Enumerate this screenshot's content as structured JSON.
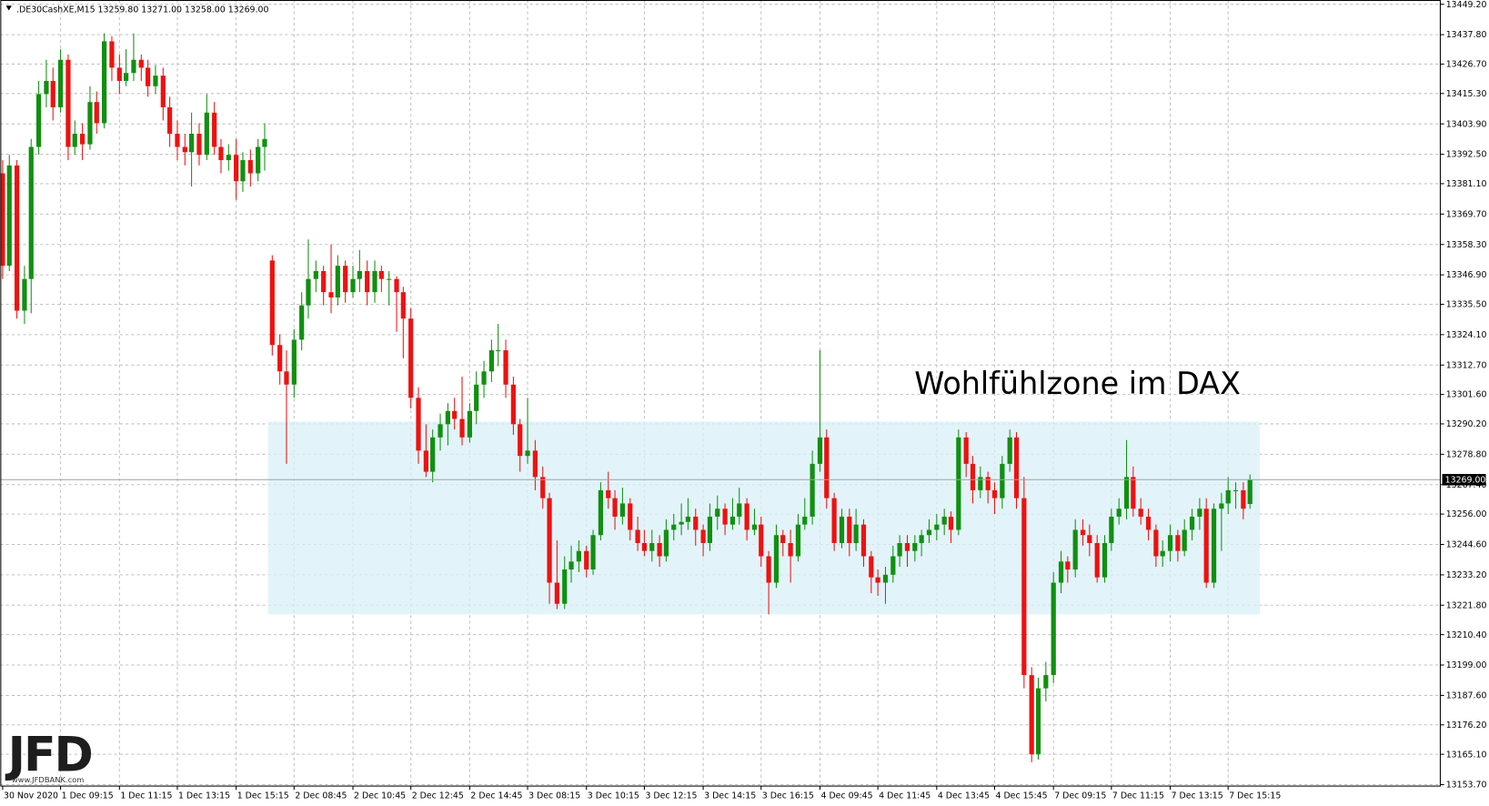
{
  "chart_data": {
    "type": "candlestick",
    "header": ".DE30CashXE,M15  13259.80 13271.00 13258.00 13269.00",
    "annotation": "Wohlfühlzone im DAX",
    "logo": "JFD",
    "logo_url": "www.JFDBANK.com",
    "up_color": "#109010",
    "down_color": "#ee1111",
    "zone_color": "#d8f0f8",
    "grid": true,
    "ylim": [
      13153.7,
      13449.2
    ],
    "yticks": [
      {
        "value": 13449.2,
        "label": "13449.20"
      },
      {
        "value": 13437.8,
        "label": "13437.80"
      },
      {
        "value": 13426.7,
        "label": "13426.70"
      },
      {
        "value": 13415.3,
        "label": "13415.30"
      },
      {
        "value": 13403.9,
        "label": "13403.90"
      },
      {
        "value": 13392.5,
        "label": "13392.50"
      },
      {
        "value": 13381.1,
        "label": "13381.10"
      },
      {
        "value": 13369.7,
        "label": "13369.70"
      },
      {
        "value": 13358.3,
        "label": "13358.30"
      },
      {
        "value": 13346.9,
        "label": "13346.90"
      },
      {
        "value": 13335.5,
        "label": "13335.50"
      },
      {
        "value": 13324.1,
        "label": "13324.10"
      },
      {
        "value": 13312.7,
        "label": "13312.70"
      },
      {
        "value": 13301.6,
        "label": "13301.60"
      },
      {
        "value": 13290.2,
        "label": "13290.20"
      },
      {
        "value": 13278.8,
        "label": "13278.80"
      },
      {
        "value": 13267.4,
        "label": "13267.40"
      },
      {
        "value": 13256,
        "label": "13256.00"
      },
      {
        "value": 13244.6,
        "label": "13244.60"
      },
      {
        "value": 13233.2,
        "label": "13233.20"
      },
      {
        "value": 13221.8,
        "label": "13221.80"
      },
      {
        "value": 13210.4,
        "label": "13210.40"
      },
      {
        "value": 13199,
        "label": "13199.00"
      },
      {
        "value": 13187.6,
        "label": "13187.60"
      },
      {
        "value": 13176.2,
        "label": "13176.20"
      },
      {
        "value": 13165.1,
        "label": "13165.10"
      },
      {
        "value": 13153.7,
        "label": "13153.70"
      }
    ],
    "current_price": {
      "value": 13269,
      "label": "13269.00"
    },
    "zone": {
      "low": 13218,
      "high": 13291
    },
    "xtick_labels": [
      "30 Nov 2020",
      "1 Dec 09:15",
      "1 Dec 11:15",
      "1 Dec 13:15",
      "1 Dec 15:15",
      "2 Dec 08:45",
      "2 Dec 10:45",
      "2 Dec 12:45",
      "2 Dec 14:45",
      "3 Dec 08:15",
      "3 Dec 10:15",
      "3 Dec 12:15",
      "3 Dec 14:15",
      "3 Dec 16:15",
      "4 Dec 09:45",
      "4 Dec 11:45",
      "4 Dec 13:45",
      "4 Dec 15:45",
      "7 Dec 09:15",
      "7 Dec 11:15",
      "7 Dec 13:15",
      "7 Dec 15:15"
    ],
    "open": [
      13385,
      13350,
      13388,
      13333,
      13345,
      13395,
      13415,
      13420,
      13410,
      13428,
      13395,
      13400,
      13396,
      13412,
      13404,
      13435,
      13425,
      13420,
      13423,
      13428,
      13425,
      13418,
      13422,
      13410,
      13400,
      13395,
      13393,
      13400,
      13392,
      13408,
      13395,
      13390,
      13392,
      13382,
      13390,
      13385,
      13395,
      13352,
      13320,
      13310,
      13305,
      13322,
      13335,
      13345,
      13348,
      13340,
      13338,
      13350,
      13340,
      13345,
      13348,
      13340,
      13348,
      13345,
      13345,
      13340,
      13330,
      13300,
      13280,
      13272,
      13285,
      13290,
      13295,
      13292,
      13285,
      13295,
      13305,
      13310,
      13318,
      13318,
      13305,
      13290,
      13278,
      13280,
      13270,
      13262,
      13230,
      13222,
      13235,
      13238,
      13242,
      13235,
      13248,
      13265,
      13262,
      13255,
      13260,
      13250,
      13245,
      13242,
      13245,
      13240,
      13250,
      13252,
      13253,
      13255,
      13250,
      13245,
      13255,
      13258,
      13252,
      13255,
      13260,
      13250,
      13252,
      13240,
      13230,
      13248,
      13245,
      13240,
      13252,
      13255,
      13275,
      13285,
      13262,
      13245,
      13255,
      13245,
      13252,
      13240,
      13232,
      13230,
      13233,
      13240,
      13245,
      13242,
      13245,
      13248,
      13250,
      13252,
      13255,
      13250,
      13285,
      13275,
      13265,
      13270,
      13265,
      13262,
      13275,
      13285,
      13262,
      13195,
      13165,
      13190,
      13195,
      13230,
      13238,
      13235,
      13250,
      13248,
      13245,
      13232,
      13245,
      13255,
      13258,
      13270,
      13258,
      13255,
      13250,
      13240,
      13242,
      13248,
      13242,
      13250,
      13255,
      13258,
      13230,
      13258,
      13260,
      13265,
      13265,
      13259.8
    ],
    "high": [
      13390,
      13392,
      13390,
      13350,
      13398,
      13420,
      13428,
      13425,
      13432,
      13430,
      13405,
      13404,
      13418,
      13416,
      13438,
      13437,
      13430,
      13432,
      13438,
      13430,
      13428,
      13426,
      13425,
      13414,
      13405,
      13400,
      13408,
      13404,
      13415,
      13412,
      13398,
      13396,
      13398,
      13393,
      13394,
      13398,
      13404,
      13354,
      13324,
      13318,
      13326,
      13340,
      13360,
      13352,
      13350,
      13358,
      13354,
      13352,
      13350,
      13356,
      13352,
      13352,
      13350,
      13348,
      13346,
      13342,
      13334,
      13304,
      13290,
      13288,
      13294,
      13298,
      13300,
      13308,
      13298,
      13310,
      13314,
      13322,
      13328,
      13322,
      13308,
      13292,
      13300,
      13284,
      13274,
      13264,
      13246,
      13240,
      13244,
      13246,
      13244,
      13250,
      13268,
      13272,
      13265,
      13266,
      13262,
      13255,
      13250,
      13250,
      13248,
      13254,
      13256,
      13260,
      13262,
      13258,
      13252,
      13260,
      13263,
      13260,
      13262,
      13266,
      13262,
      13258,
      13255,
      13242,
      13252,
      13250,
      13250,
      13256,
      13262,
      13280,
      13318,
      13288,
      13264,
      13258,
      13258,
      13258,
      13254,
      13242,
      13235,
      13236,
      13244,
      13248,
      13248,
      13248,
      13250,
      13254,
      13256,
      13258,
      13257,
      13288,
      13287,
      13278,
      13274,
      13272,
      13268,
      13278,
      13288,
      13287,
      13270,
      13198,
      13194,
      13200,
      13234,
      13242,
      13240,
      13254,
      13254,
      13252,
      13248,
      13248,
      13258,
      13262,
      13284,
      13274,
      13262,
      13258,
      13252,
      13246,
      13252,
      13250,
      13254,
      13258,
      13262,
      13262,
      13260,
      13264,
      13270,
      13268,
      13268,
      13271
    ],
    "low": [
      13345,
      13348,
      13330,
      13328,
      13332,
      13392,
      13410,
      13405,
      13408,
      13390,
      13392,
      13390,
      13394,
      13400,
      13402,
      13420,
      13415,
      13418,
      13420,
      13420,
      13414,
      13415,
      13405,
      13395,
      13390,
      13388,
      13380,
      13388,
      13390,
      13392,
      13385,
      13386,
      13375,
      13378,
      13380,
      13382,
      13386,
      13316,
      13305,
      13275,
      13300,
      13318,
      13330,
      13340,
      13335,
      13332,
      13335,
      13336,
      13338,
      13340,
      13335,
      13336,
      13340,
      13335,
      13325,
      13315,
      13296,
      13275,
      13270,
      13268,
      13280,
      13282,
      13288,
      13282,
      13283,
      13290,
      13300,
      13306,
      13312,
      13300,
      13286,
      13272,
      13275,
      13265,
      13258,
      13222,
      13220,
      13220,
      13230,
      13234,
      13232,
      13233,
      13246,
      13258,
      13250,
      13252,
      13246,
      13242,
      13240,
      13238,
      13236,
      13238,
      13246,
      13248,
      13250,
      13244,
      13240,
      13242,
      13250,
      13248,
      13250,
      13252,
      13246,
      13248,
      13236,
      13218,
      13228,
      13240,
      13230,
      13238,
      13250,
      13252,
      13272,
      13258,
      13242,
      13243,
      13240,
      13242,
      13236,
      13226,
      13225,
      13222,
      13230,
      13236,
      13236,
      13238,
      13240,
      13245,
      13246,
      13248,
      13245,
      13248,
      13270,
      13260,
      13262,
      13260,
      13256,
      13258,
      13272,
      13258,
      13190,
      13162,
      13163,
      13185,
      13192,
      13226,
      13230,
      13232,
      13244,
      13240,
      13230,
      13230,
      13242,
      13252,
      13254,
      13255,
      13252,
      13246,
      13236,
      13236,
      13238,
      13238,
      13240,
      13246,
      13250,
      13228,
      13228,
      13242,
      13256,
      13258,
      13254,
      13258
    ],
    "close": [
      13350,
      13388,
      13333,
      13345,
      13395,
      13415,
      13420,
      13410,
      13428,
      13395,
      13400,
      13396,
      13412,
      13404,
      13435,
      13425,
      13420,
      13423,
      13428,
      13425,
      13418,
      13422,
      13410,
      13400,
      13395,
      13393,
      13400,
      13392,
      13408,
      13395,
      13390,
      13392,
      13382,
      13390,
      13385,
      13395,
      13398,
      13320,
      13310,
      13305,
      13322,
      13335,
      13345,
      13348,
      13340,
      13338,
      13350,
      13340,
      13345,
      13348,
      13340,
      13348,
      13345,
      13345,
      13340,
      13330,
      13300,
      13280,
      13272,
      13285,
      13290,
      13295,
      13292,
      13285,
      13295,
      13305,
      13310,
      13318,
      13318,
      13305,
      13290,
      13278,
      13280,
      13270,
      13262,
      13230,
      13222,
      13235,
      13238,
      13242,
      13235,
      13248,
      13265,
      13262,
      13255,
      13260,
      13250,
      13245,
      13242,
      13245,
      13240,
      13250,
      13252,
      13253,
      13255,
      13250,
      13245,
      13255,
      13258,
      13252,
      13255,
      13260,
      13250,
      13252,
      13240,
      13230,
      13248,
      13245,
      13240,
      13252,
      13255,
      13275,
      13285,
      13262,
      13245,
      13255,
      13245,
      13252,
      13240,
      13232,
      13230,
      13233,
      13240,
      13245,
      13242,
      13245,
      13248,
      13250,
      13252,
      13255,
      13250,
      13285,
      13275,
      13265,
      13270,
      13265,
      13262,
      13275,
      13285,
      13262,
      13195,
      13165,
      13190,
      13195,
      13230,
      13238,
      13235,
      13250,
      13248,
      13245,
      13232,
      13245,
      13255,
      13258,
      13270,
      13258,
      13255,
      13250,
      13240,
      13242,
      13248,
      13242,
      13250,
      13255,
      13258,
      13230,
      13258,
      13260,
      13265,
      13265,
      13258,
      13269
    ]
  }
}
